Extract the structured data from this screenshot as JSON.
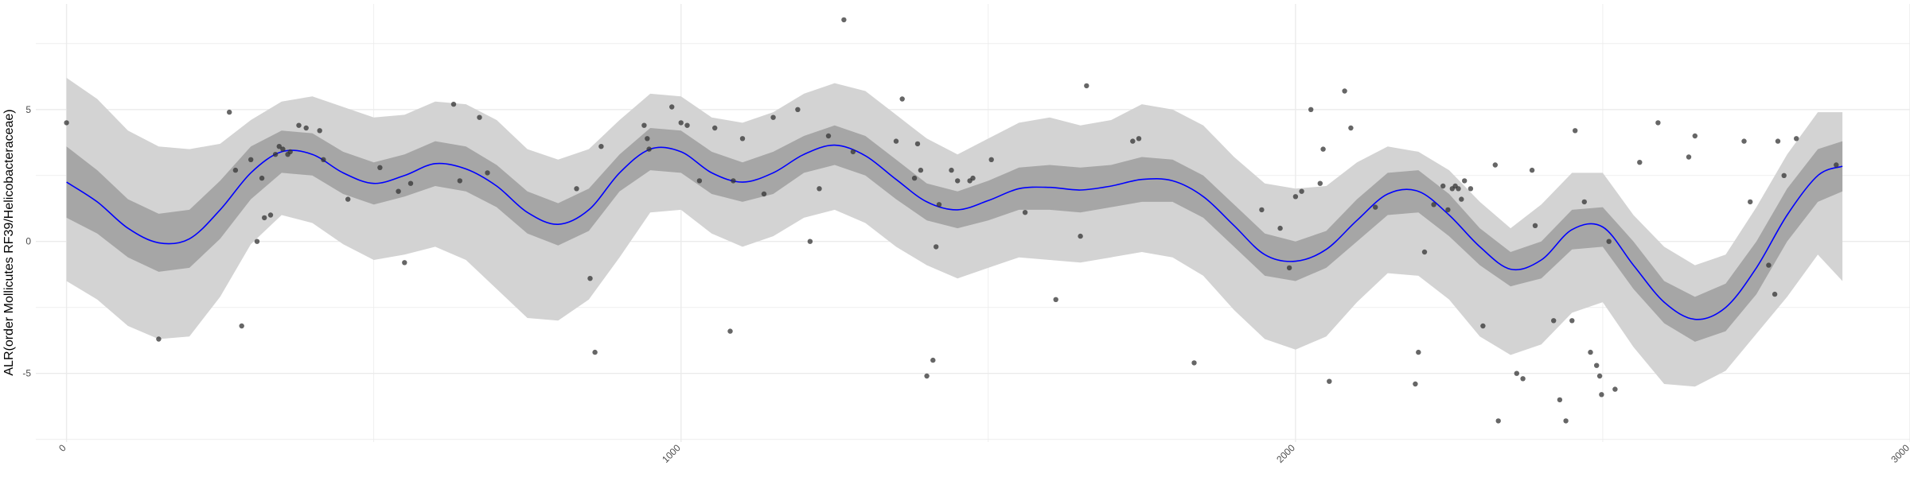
{
  "chart_data": {
    "type": "scatter",
    "title": "",
    "xlabel": "",
    "ylabel": "ALR(order Mollicutes RF39/Helicobacteraceae)",
    "xlim": [
      -50,
      3000
    ],
    "ylim": [
      -7.6,
      9.0
    ],
    "x_ticks": [
      0,
      1000,
      2000,
      3000
    ],
    "x_tick_labels": [
      "0",
      "1000",
      "2000",
      "3000"
    ],
    "y_ticks": [
      -5,
      0,
      5
    ],
    "y_tick_labels": [
      "-5",
      "0",
      "5"
    ],
    "x_minor_ticks": [
      500,
      1500,
      2500
    ],
    "y_minor_ticks": [
      -7.5,
      -2.5,
      2.5,
      7.5
    ],
    "grid": true,
    "legend": "none",
    "colors": {
      "points": "#333333",
      "fit_line": "#0000ff",
      "inner_band": "#a6a6a6",
      "outer_band": "#d3d3d3",
      "grid": "#ebebeb"
    },
    "fit": {
      "x": [
        0,
        50,
        100,
        150,
        200,
        250,
        300,
        350,
        400,
        450,
        500,
        550,
        600,
        650,
        700,
        750,
        800,
        850,
        900,
        950,
        1000,
        1050,
        1100,
        1150,
        1200,
        1250,
        1300,
        1350,
        1400,
        1450,
        1500,
        1550,
        1600,
        1650,
        1700,
        1750,
        1800,
        1850,
        1900,
        1950,
        2000,
        2050,
        2100,
        2150,
        2200,
        2250,
        2300,
        2350,
        2400,
        2450,
        2500,
        2550,
        2600,
        2650,
        2700,
        2750,
        2800,
        2850,
        2890
      ],
      "y": [
        2.25,
        1.5,
        0.5,
        -0.05,
        0.1,
        1.2,
        2.6,
        3.4,
        3.3,
        2.6,
        2.2,
        2.5,
        2.95,
        2.75,
        2.1,
        1.1,
        0.65,
        1.2,
        2.6,
        3.5,
        3.4,
        2.6,
        2.25,
        2.6,
        3.3,
        3.65,
        3.25,
        2.35,
        1.5,
        1.2,
        1.55,
        2.0,
        2.05,
        1.95,
        2.1,
        2.35,
        2.3,
        1.7,
        0.6,
        -0.5,
        -0.75,
        -0.3,
        0.8,
        1.8,
        1.9,
        1.0,
        -0.2,
        -1.05,
        -0.7,
        0.45,
        0.55,
        -0.9,
        -2.3,
        -2.95,
        -2.5,
        -1.0,
        1.0,
        2.5,
        2.85
      ]
    },
    "fit_inner": {
      "upper": [
        3.6,
        2.7,
        1.6,
        1.05,
        1.2,
        2.3,
        3.6,
        4.2,
        4.1,
        3.4,
        3.0,
        3.3,
        3.8,
        3.6,
        2.9,
        1.9,
        1.45,
        2.0,
        3.3,
        4.3,
        4.2,
        3.4,
        3.0,
        3.4,
        4.0,
        4.4,
        4.0,
        3.1,
        2.2,
        1.9,
        2.3,
        2.8,
        2.9,
        2.8,
        2.9,
        3.2,
        3.1,
        2.5,
        1.4,
        0.3,
        0.0,
        0.4,
        1.6,
        2.6,
        2.7,
        1.8,
        0.5,
        -0.4,
        0.0,
        1.2,
        1.3,
        0.0,
        -1.5,
        -2.1,
        -1.6,
        0.0,
        2.0,
        3.5,
        3.8
      ],
      "lower": [
        0.9,
        0.3,
        -0.6,
        -1.15,
        -1.0,
        0.1,
        1.6,
        2.6,
        2.5,
        1.8,
        1.4,
        1.7,
        2.1,
        1.9,
        1.3,
        0.3,
        -0.15,
        0.4,
        1.9,
        2.7,
        2.6,
        1.8,
        1.5,
        1.8,
        2.6,
        2.9,
        2.5,
        1.6,
        0.8,
        0.5,
        0.8,
        1.2,
        1.2,
        1.1,
        1.3,
        1.5,
        1.5,
        0.9,
        -0.2,
        -1.3,
        -1.5,
        -1.0,
        0.0,
        1.0,
        1.1,
        0.2,
        -0.9,
        -1.7,
        -1.4,
        -0.3,
        -0.2,
        -1.8,
        -3.1,
        -3.8,
        -3.4,
        -2.0,
        0.0,
        1.5,
        1.9
      ]
    },
    "fit_outer": {
      "upper": [
        6.2,
        5.4,
        4.2,
        3.6,
        3.5,
        3.7,
        4.6,
        5.3,
        5.5,
        5.1,
        4.7,
        4.8,
        5.3,
        5.2,
        4.6,
        3.5,
        3.1,
        3.5,
        4.6,
        5.6,
        5.5,
        4.7,
        4.5,
        4.9,
        5.6,
        6.0,
        5.7,
        4.8,
        3.9,
        3.3,
        3.9,
        4.5,
        4.7,
        4.4,
        4.6,
        5.2,
        5.0,
        4.4,
        3.2,
        2.2,
        2.0,
        2.1,
        3.0,
        3.6,
        3.4,
        2.7,
        1.5,
        0.5,
        1.4,
        2.6,
        2.6,
        1.0,
        -0.2,
        -0.9,
        -0.5,
        1.3,
        3.3,
        4.9,
        4.9
      ],
      "lower": [
        -1.5,
        -2.2,
        -3.2,
        -3.7,
        -3.6,
        -2.1,
        -0.1,
        1.0,
        0.7,
        -0.1,
        -0.7,
        -0.5,
        -0.2,
        -0.7,
        -1.8,
        -2.9,
        -3.0,
        -2.2,
        -0.6,
        1.1,
        1.2,
        0.3,
        -0.2,
        0.2,
        0.9,
        1.2,
        0.7,
        -0.2,
        -0.9,
        -1.4,
        -1.0,
        -0.6,
        -0.7,
        -0.8,
        -0.6,
        -0.4,
        -0.6,
        -1.3,
        -2.6,
        -3.7,
        -4.1,
        -3.6,
        -2.3,
        -1.2,
        -1.3,
        -2.2,
        -3.6,
        -4.3,
        -3.9,
        -2.7,
        -2.3,
        -4.0,
        -5.4,
        -5.5,
        -4.9,
        -3.5,
        -2.1,
        -0.5,
        -1.5
      ]
    },
    "points": [
      [
        0,
        4.5
      ],
      [
        150,
        -3.7
      ],
      [
        265,
        4.9
      ],
      [
        275,
        2.7
      ],
      [
        285,
        -3.2
      ],
      [
        300,
        3.1
      ],
      [
        310,
        0.0
      ],
      [
        318,
        2.4
      ],
      [
        322,
        0.9
      ],
      [
        332,
        1.0
      ],
      [
        340,
        3.3
      ],
      [
        346,
        3.6
      ],
      [
        352,
        3.5
      ],
      [
        360,
        3.3
      ],
      [
        364,
        3.4
      ],
      [
        378,
        4.4
      ],
      [
        390,
        4.3
      ],
      [
        412,
        4.2
      ],
      [
        418,
        3.1
      ],
      [
        458,
        1.6
      ],
      [
        510,
        2.8
      ],
      [
        540,
        1.9
      ],
      [
        550,
        -0.8
      ],
      [
        560,
        2.2
      ],
      [
        630,
        5.2
      ],
      [
        640,
        2.3
      ],
      [
        672,
        4.7
      ],
      [
        685,
        2.6
      ],
      [
        830,
        2.0
      ],
      [
        852,
        -1.4
      ],
      [
        860,
        -4.2
      ],
      [
        870,
        3.6
      ],
      [
        940,
        4.4
      ],
      [
        945,
        3.9
      ],
      [
        948,
        3.5
      ],
      [
        985,
        5.1
      ],
      [
        1000,
        4.5
      ],
      [
        1010,
        4.4
      ],
      [
        1030,
        2.3
      ],
      [
        1055,
        4.3
      ],
      [
        1080,
        -3.4
      ],
      [
        1085,
        2.3
      ],
      [
        1100,
        3.9
      ],
      [
        1135,
        1.8
      ],
      [
        1150,
        4.7
      ],
      [
        1190,
        5.0
      ],
      [
        1210,
        0.0
      ],
      [
        1225,
        2.0
      ],
      [
        1240,
        4.0
      ],
      [
        1265,
        8.4
      ],
      [
        1280,
        3.4
      ],
      [
        1350,
        3.8
      ],
      [
        1360,
        5.4
      ],
      [
        1380,
        2.4
      ],
      [
        1385,
        3.7
      ],
      [
        1390,
        2.7
      ],
      [
        1400,
        -5.1
      ],
      [
        1410,
        -4.5
      ],
      [
        1415,
        -0.2
      ],
      [
        1420,
        1.4
      ],
      [
        1440,
        2.7
      ],
      [
        1450,
        2.3
      ],
      [
        1470,
        2.3
      ],
      [
        1475,
        2.4
      ],
      [
        1505,
        3.1
      ],
      [
        1560,
        1.1
      ],
      [
        1610,
        -2.2
      ],
      [
        1650,
        0.2
      ],
      [
        1660,
        5.9
      ],
      [
        1735,
        3.8
      ],
      [
        1745,
        3.9
      ],
      [
        1835,
        -4.6
      ],
      [
        1945,
        1.2
      ],
      [
        1975,
        0.5
      ],
      [
        1990,
        -1.0
      ],
      [
        2000,
        1.7
      ],
      [
        2010,
        1.9
      ],
      [
        2025,
        5.0
      ],
      [
        2040,
        2.2
      ],
      [
        2045,
        3.5
      ],
      [
        2055,
        -5.3
      ],
      [
        2080,
        5.7
      ],
      [
        2090,
        4.3
      ],
      [
        2130,
        1.3
      ],
      [
        2195,
        -5.4
      ],
      [
        2200,
        -4.2
      ],
      [
        2210,
        -0.4
      ],
      [
        2225,
        1.4
      ],
      [
        2240,
        2.1
      ],
      [
        2248,
        1.2
      ],
      [
        2255,
        2.0
      ],
      [
        2260,
        2.1
      ],
      [
        2265,
        2.0
      ],
      [
        2270,
        1.6
      ],
      [
        2275,
        2.3
      ],
      [
        2285,
        2.0
      ],
      [
        2305,
        -3.2
      ],
      [
        2325,
        2.9
      ],
      [
        2330,
        -6.8
      ],
      [
        2360,
        -5.0
      ],
      [
        2370,
        -5.2
      ],
      [
        2385,
        2.7
      ],
      [
        2390,
        0.6
      ],
      [
        2420,
        -3.0
      ],
      [
        2430,
        -6.0
      ],
      [
        2440,
        -6.8
      ],
      [
        2450,
        -3.0
      ],
      [
        2455,
        4.2
      ],
      [
        2470,
        1.5
      ],
      [
        2480,
        -4.2
      ],
      [
        2490,
        -4.7
      ],
      [
        2495,
        -5.1
      ],
      [
        2498,
        -5.8
      ],
      [
        2510,
        0.0
      ],
      [
        2520,
        -5.6
      ],
      [
        2560,
        3.0
      ],
      [
        2590,
        4.5
      ],
      [
        2640,
        3.2
      ],
      [
        2650,
        4.0
      ],
      [
        2730,
        3.8
      ],
      [
        2740,
        1.5
      ],
      [
        2770,
        -0.9
      ],
      [
        2780,
        -2.0
      ],
      [
        2785,
        3.8
      ],
      [
        2795,
        2.5
      ],
      [
        2815,
        3.9
      ],
      [
        2880,
        2.9
      ]
    ]
  }
}
